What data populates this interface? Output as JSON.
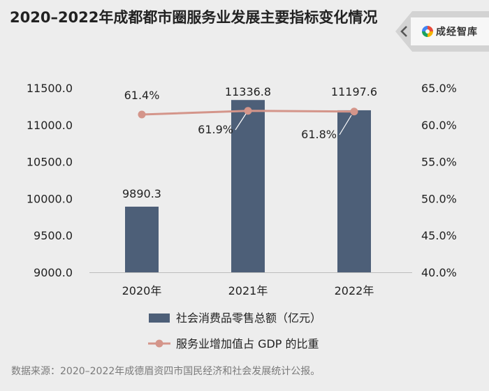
{
  "header": {
    "title": "2020–2022年成都都市圈服务业发展主要指标变化情况",
    "brand_name": "成经智库",
    "brand_icon": "logo-icon"
  },
  "chart_data": {
    "type": "bar",
    "categories": [
      "2020年",
      "2021年",
      "2022年"
    ],
    "series": [
      {
        "name": "社会消费品零售总额（亿元）",
        "type": "bar",
        "axis": "left",
        "values": [
          9890.3,
          11336.8,
          11197.6
        ],
        "labels": [
          "9890.3",
          "11336.8",
          "11197.6"
        ],
        "color": "#4d5f78"
      },
      {
        "name": "服务业增加值占 GDP 的比重",
        "type": "line",
        "axis": "right",
        "values": [
          61.4,
          61.9,
          61.8
        ],
        "labels": [
          "61.4%",
          "61.9%",
          "61.8%"
        ],
        "color": "#d4958a"
      }
    ],
    "y_left": {
      "min": 9000,
      "max": 11500,
      "ticks": [
        "9000.0",
        "9500.0",
        "10000.0",
        "10500.0",
        "11000.0",
        "11500.0"
      ]
    },
    "y_right": {
      "min": 40,
      "max": 65,
      "ticks": [
        "40.0%",
        "45.0%",
        "50.0%",
        "55.0%",
        "60.0%",
        "65.0%"
      ]
    },
    "grid": false,
    "legend_position": "bottom"
  },
  "footer": {
    "source": "数据来源：2020–2022年成德眉资四市国民经济和社会发展统计公报。"
  },
  "colors": {
    "background": "#ededed",
    "bar": "#4d5f78",
    "line": "#d4958a",
    "text": "#222222"
  }
}
